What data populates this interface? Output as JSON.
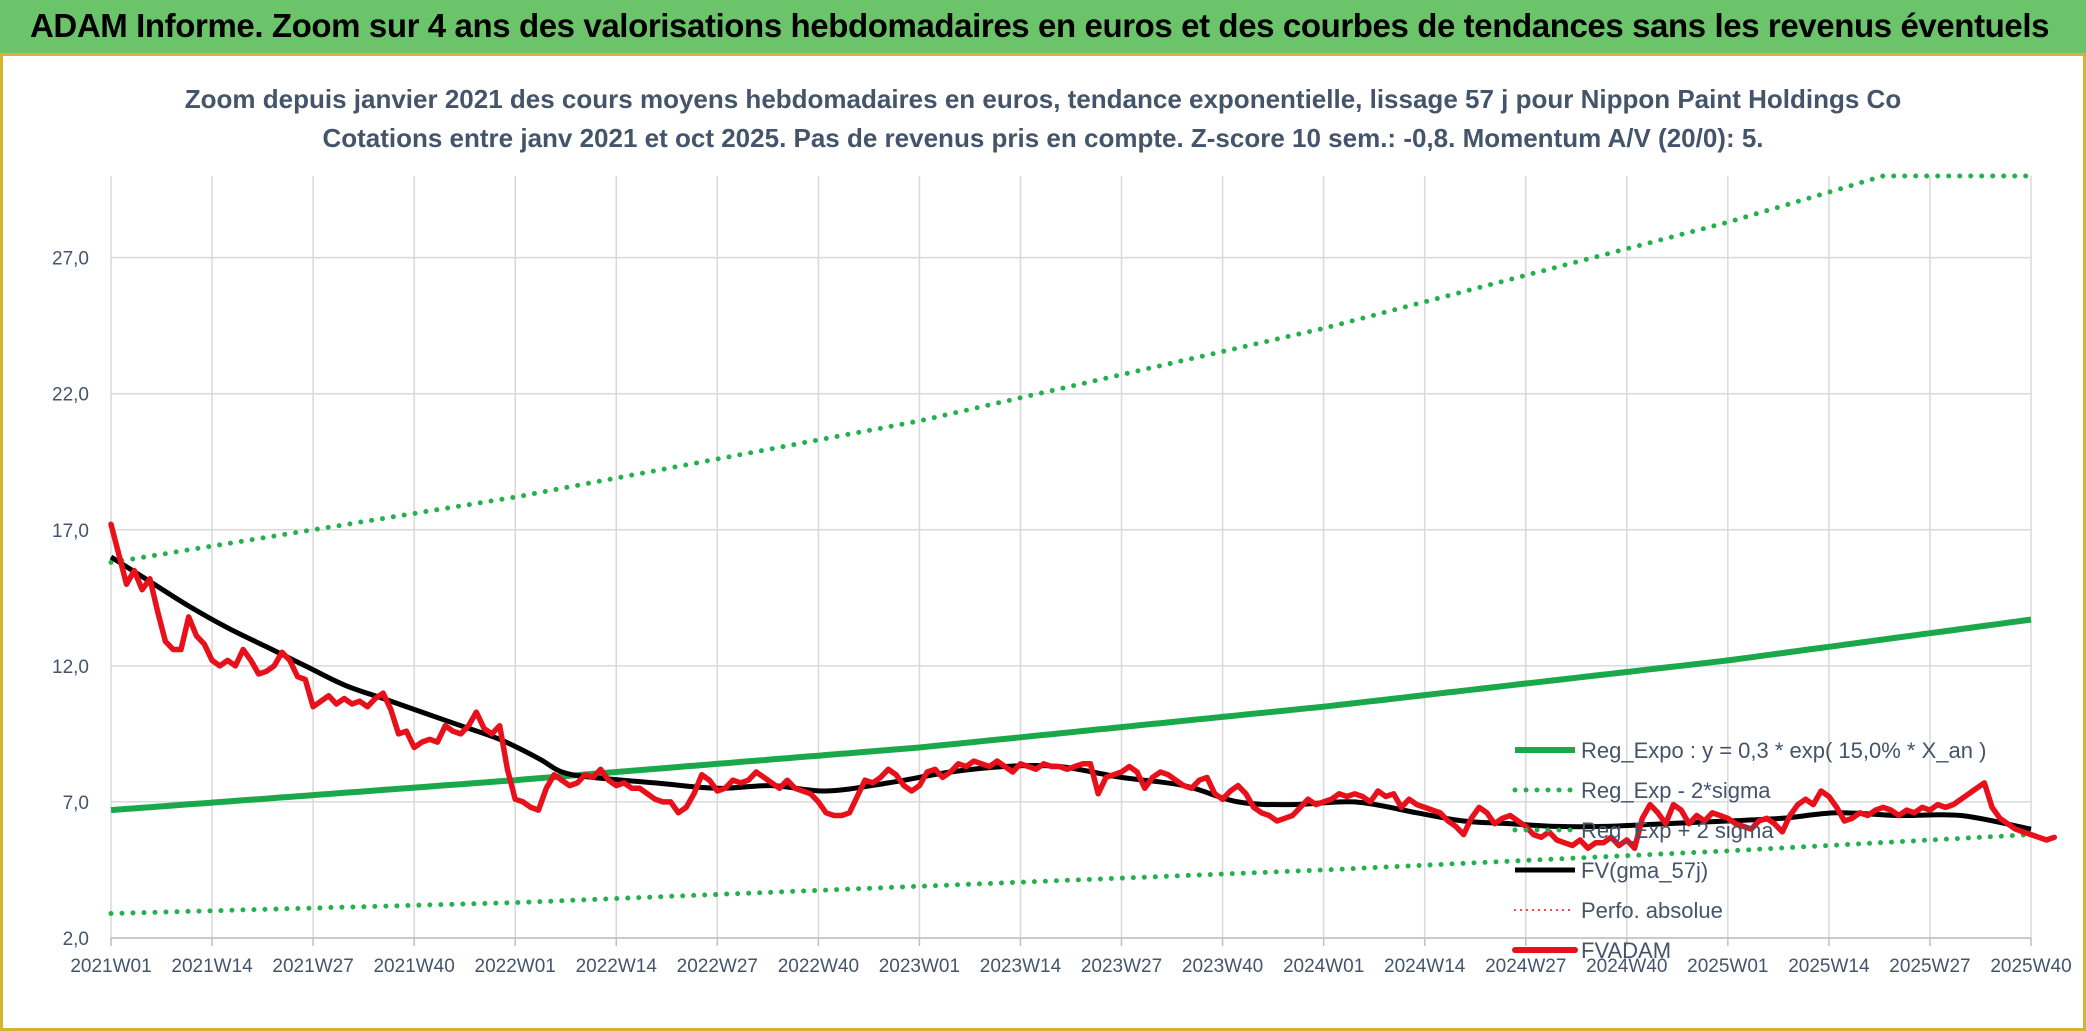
{
  "banner": {
    "title": "ADAM Informe. Zoom sur 4 ans des valorisations hebdomadaires en euros et des courbes de tendances sans les revenus éventuels"
  },
  "colors": {
    "banner_bg": "#6cc46a",
    "frame_border": "#d4b531",
    "trend_green": "#1aa84a",
    "band_green": "#22b14c",
    "smooth_black": "#000000",
    "price_red": "#e8101a",
    "text": "#44546a",
    "grid": "#d9d9d9"
  },
  "chart_data": {
    "type": "line",
    "title": "Zoom depuis janvier 2021 des cours moyens hebdomadaires en euros, tendance exponentielle, lissage 57 j pour Nippon Paint Holdings Co",
    "subtitle": "Cotations entre janv 2021 et oct 2025. Pas de revenus pris en compte. Z-score 10 sem.: -0,8. Momentum A/V (20/0): 5.",
    "xlabel": "",
    "ylabel": "",
    "ylim": [
      2,
      30
    ],
    "y_ticks": [
      "2,0",
      "7,0",
      "12,0",
      "17,0",
      "22,0",
      "27,0"
    ],
    "y_tick_values": [
      2,
      7,
      12,
      17,
      22,
      27
    ],
    "x_range": [
      0,
      247
    ],
    "x_ticks": [
      "2021W01",
      "2021W14",
      "2021W27",
      "2021W40",
      "2022W01",
      "2022W14",
      "2022W27",
      "2022W40",
      "2023W01",
      "2023W14",
      "2023W27",
      "2023W40",
      "2024W01",
      "2024W14",
      "2024W27",
      "2024W40",
      "2025W01",
      "2025W14",
      "2025W27",
      "2025W40"
    ],
    "x_tick_positions": [
      0,
      13,
      26,
      39,
      52,
      65,
      78,
      91,
      104,
      117,
      130,
      143,
      156,
      169,
      182,
      195,
      208,
      221,
      234,
      247
    ],
    "legend": {
      "position": "right",
      "entries": [
        "Reg_Expo : y = 0,3 * exp( 15,0% *  X_an )",
        "Reg_Exp - 2*sigma",
        "Reg_Exp + 2 sigma",
        "FV(gma_57j)",
        "Perfo. absolue",
        "FVADAM"
      ]
    },
    "series": [
      {
        "name": "Reg_Expo : y = 0,3 * exp( 15,0% *  X_an )",
        "style": "solid",
        "points": [
          [
            0,
            6.7
          ],
          [
            52,
            7.8
          ],
          [
            104,
            9.0
          ],
          [
            156,
            10.5
          ],
          [
            208,
            12.2
          ],
          [
            247,
            13.7
          ]
        ]
      },
      {
        "name": "Reg_Exp - 2*sigma",
        "style": "dotted",
        "points": [
          [
            0,
            2.9
          ],
          [
            52,
            3.3
          ],
          [
            104,
            3.9
          ],
          [
            156,
            4.5
          ],
          [
            208,
            5.2
          ],
          [
            247,
            5.8
          ]
        ]
      },
      {
        "name": "Reg_Exp + 2 sigma",
        "style": "dotted",
        "points": [
          [
            0,
            15.8
          ],
          [
            52,
            18.2
          ],
          [
            104,
            21.0
          ],
          [
            156,
            24.4
          ],
          [
            208,
            28.3
          ],
          [
            228,
            30.0
          ],
          [
            247,
            30.0
          ]
        ]
      },
      {
        "name": "FV(gma_57j)",
        "style": "solid",
        "points": [
          [
            0,
            16.0
          ],
          [
            5,
            15.1
          ],
          [
            10,
            14.2
          ],
          [
            15,
            13.4
          ],
          [
            20,
            12.7
          ],
          [
            25,
            12.0
          ],
          [
            30,
            11.3
          ],
          [
            35,
            10.8
          ],
          [
            40,
            10.3
          ],
          [
            45,
            9.8
          ],
          [
            50,
            9.3
          ],
          [
            55,
            8.6
          ],
          [
            58,
            8.1
          ],
          [
            62,
            7.9
          ],
          [
            70,
            7.7
          ],
          [
            78,
            7.5
          ],
          [
            85,
            7.6
          ],
          [
            92,
            7.4
          ],
          [
            100,
            7.7
          ],
          [
            108,
            8.1
          ],
          [
            115,
            8.3
          ],
          [
            122,
            8.3
          ],
          [
            130,
            7.9
          ],
          [
            138,
            7.6
          ],
          [
            145,
            7.0
          ],
          [
            152,
            6.9
          ],
          [
            160,
            7.0
          ],
          [
            168,
            6.6
          ],
          [
            174,
            6.3
          ],
          [
            180,
            6.2
          ],
          [
            186,
            6.1
          ],
          [
            192,
            6.1
          ],
          [
            200,
            6.2
          ],
          [
            208,
            6.3
          ],
          [
            215,
            6.4
          ],
          [
            222,
            6.6
          ],
          [
            230,
            6.5
          ],
          [
            238,
            6.5
          ],
          [
            247,
            6.0
          ]
        ]
      },
      {
        "name": "FVADAM",
        "style": "solid",
        "values": [
          17.2,
          16.1,
          15.0,
          15.5,
          14.8,
          15.2,
          14.0,
          12.9,
          12.6,
          12.6,
          13.8,
          13.1,
          12.8,
          12.2,
          12.0,
          12.2,
          12.0,
          12.6,
          12.2,
          11.7,
          11.8,
          12.0,
          12.5,
          12.2,
          11.6,
          11.5,
          10.5,
          10.7,
          10.9,
          10.6,
          10.8,
          10.6,
          10.7,
          10.5,
          10.8,
          11.0,
          10.4,
          9.5,
          9.6,
          9.0,
          9.2,
          9.3,
          9.2,
          9.8,
          9.6,
          9.5,
          9.8,
          10.3,
          9.7,
          9.5,
          9.8,
          8.2,
          7.1,
          7.0,
          6.8,
          6.7,
          7.5,
          8.0,
          7.8,
          7.6,
          7.7,
          8.0,
          7.9,
          8.2,
          7.8,
          7.6,
          7.7,
          7.5,
          7.5,
          7.3,
          7.1,
          7.0,
          7.0,
          6.6,
          6.8,
          7.3,
          8.0,
          7.8,
          7.4,
          7.5,
          7.8,
          7.7,
          7.8,
          8.1,
          7.9,
          7.7,
          7.5,
          7.8,
          7.5,
          7.4,
          7.3,
          7.0,
          6.6,
          6.5,
          6.5,
          6.6,
          7.2,
          7.8,
          7.7,
          7.9,
          8.2,
          8.0,
          7.6,
          7.4,
          7.6,
          8.1,
          8.2,
          7.9,
          8.1,
          8.4,
          8.3,
          8.5,
          8.4,
          8.3,
          8.5,
          8.3,
          8.1,
          8.4,
          8.3,
          8.2,
          8.4,
          8.3,
          8.3,
          8.2,
          8.3,
          8.4,
          8.4,
          7.3,
          7.9,
          8.0,
          8.1,
          8.3,
          8.1,
          7.5,
          7.9,
          8.1,
          8.0,
          7.8,
          7.6,
          7.5,
          7.8,
          7.9,
          7.3,
          7.1,
          7.4,
          7.6,
          7.3,
          6.8,
          6.6,
          6.5,
          6.3,
          6.4,
          6.5,
          6.8,
          7.1,
          6.9,
          7.0,
          7.1,
          7.3,
          7.2,
          7.3,
          7.2,
          7.0,
          7.4,
          7.2,
          7.3,
          6.8,
          7.1,
          6.9,
          6.8,
          6.7,
          6.6,
          6.3,
          6.1,
          5.8,
          6.4,
          6.8,
          6.6,
          6.2,
          6.4,
          6.5,
          6.3,
          6.1,
          5.8,
          5.7,
          5.9,
          5.6,
          5.5,
          5.4,
          5.6,
          5.3,
          5.5,
          5.5,
          5.7,
          5.4,
          5.6,
          5.3,
          6.4,
          6.9,
          6.6,
          6.2,
          6.9,
          6.7,
          6.2,
          6.5,
          6.3,
          6.6,
          6.5,
          6.4,
          6.2,
          6.1,
          6.0,
          6.3,
          6.4,
          6.2,
          5.9,
          6.5,
          6.9,
          7.1,
          6.9,
          7.4,
          7.2,
          6.8,
          6.3,
          6.4,
          6.6,
          6.5,
          6.7,
          6.8,
          6.7,
          6.5,
          6.7,
          6.6,
          6.8,
          6.7,
          6.9,
          6.8,
          6.9,
          7.1,
          7.3,
          7.5,
          7.7,
          6.8,
          6.4,
          6.2,
          6.0,
          5.9,
          5.8,
          5.7,
          5.6,
          5.7
        ]
      }
    ]
  }
}
